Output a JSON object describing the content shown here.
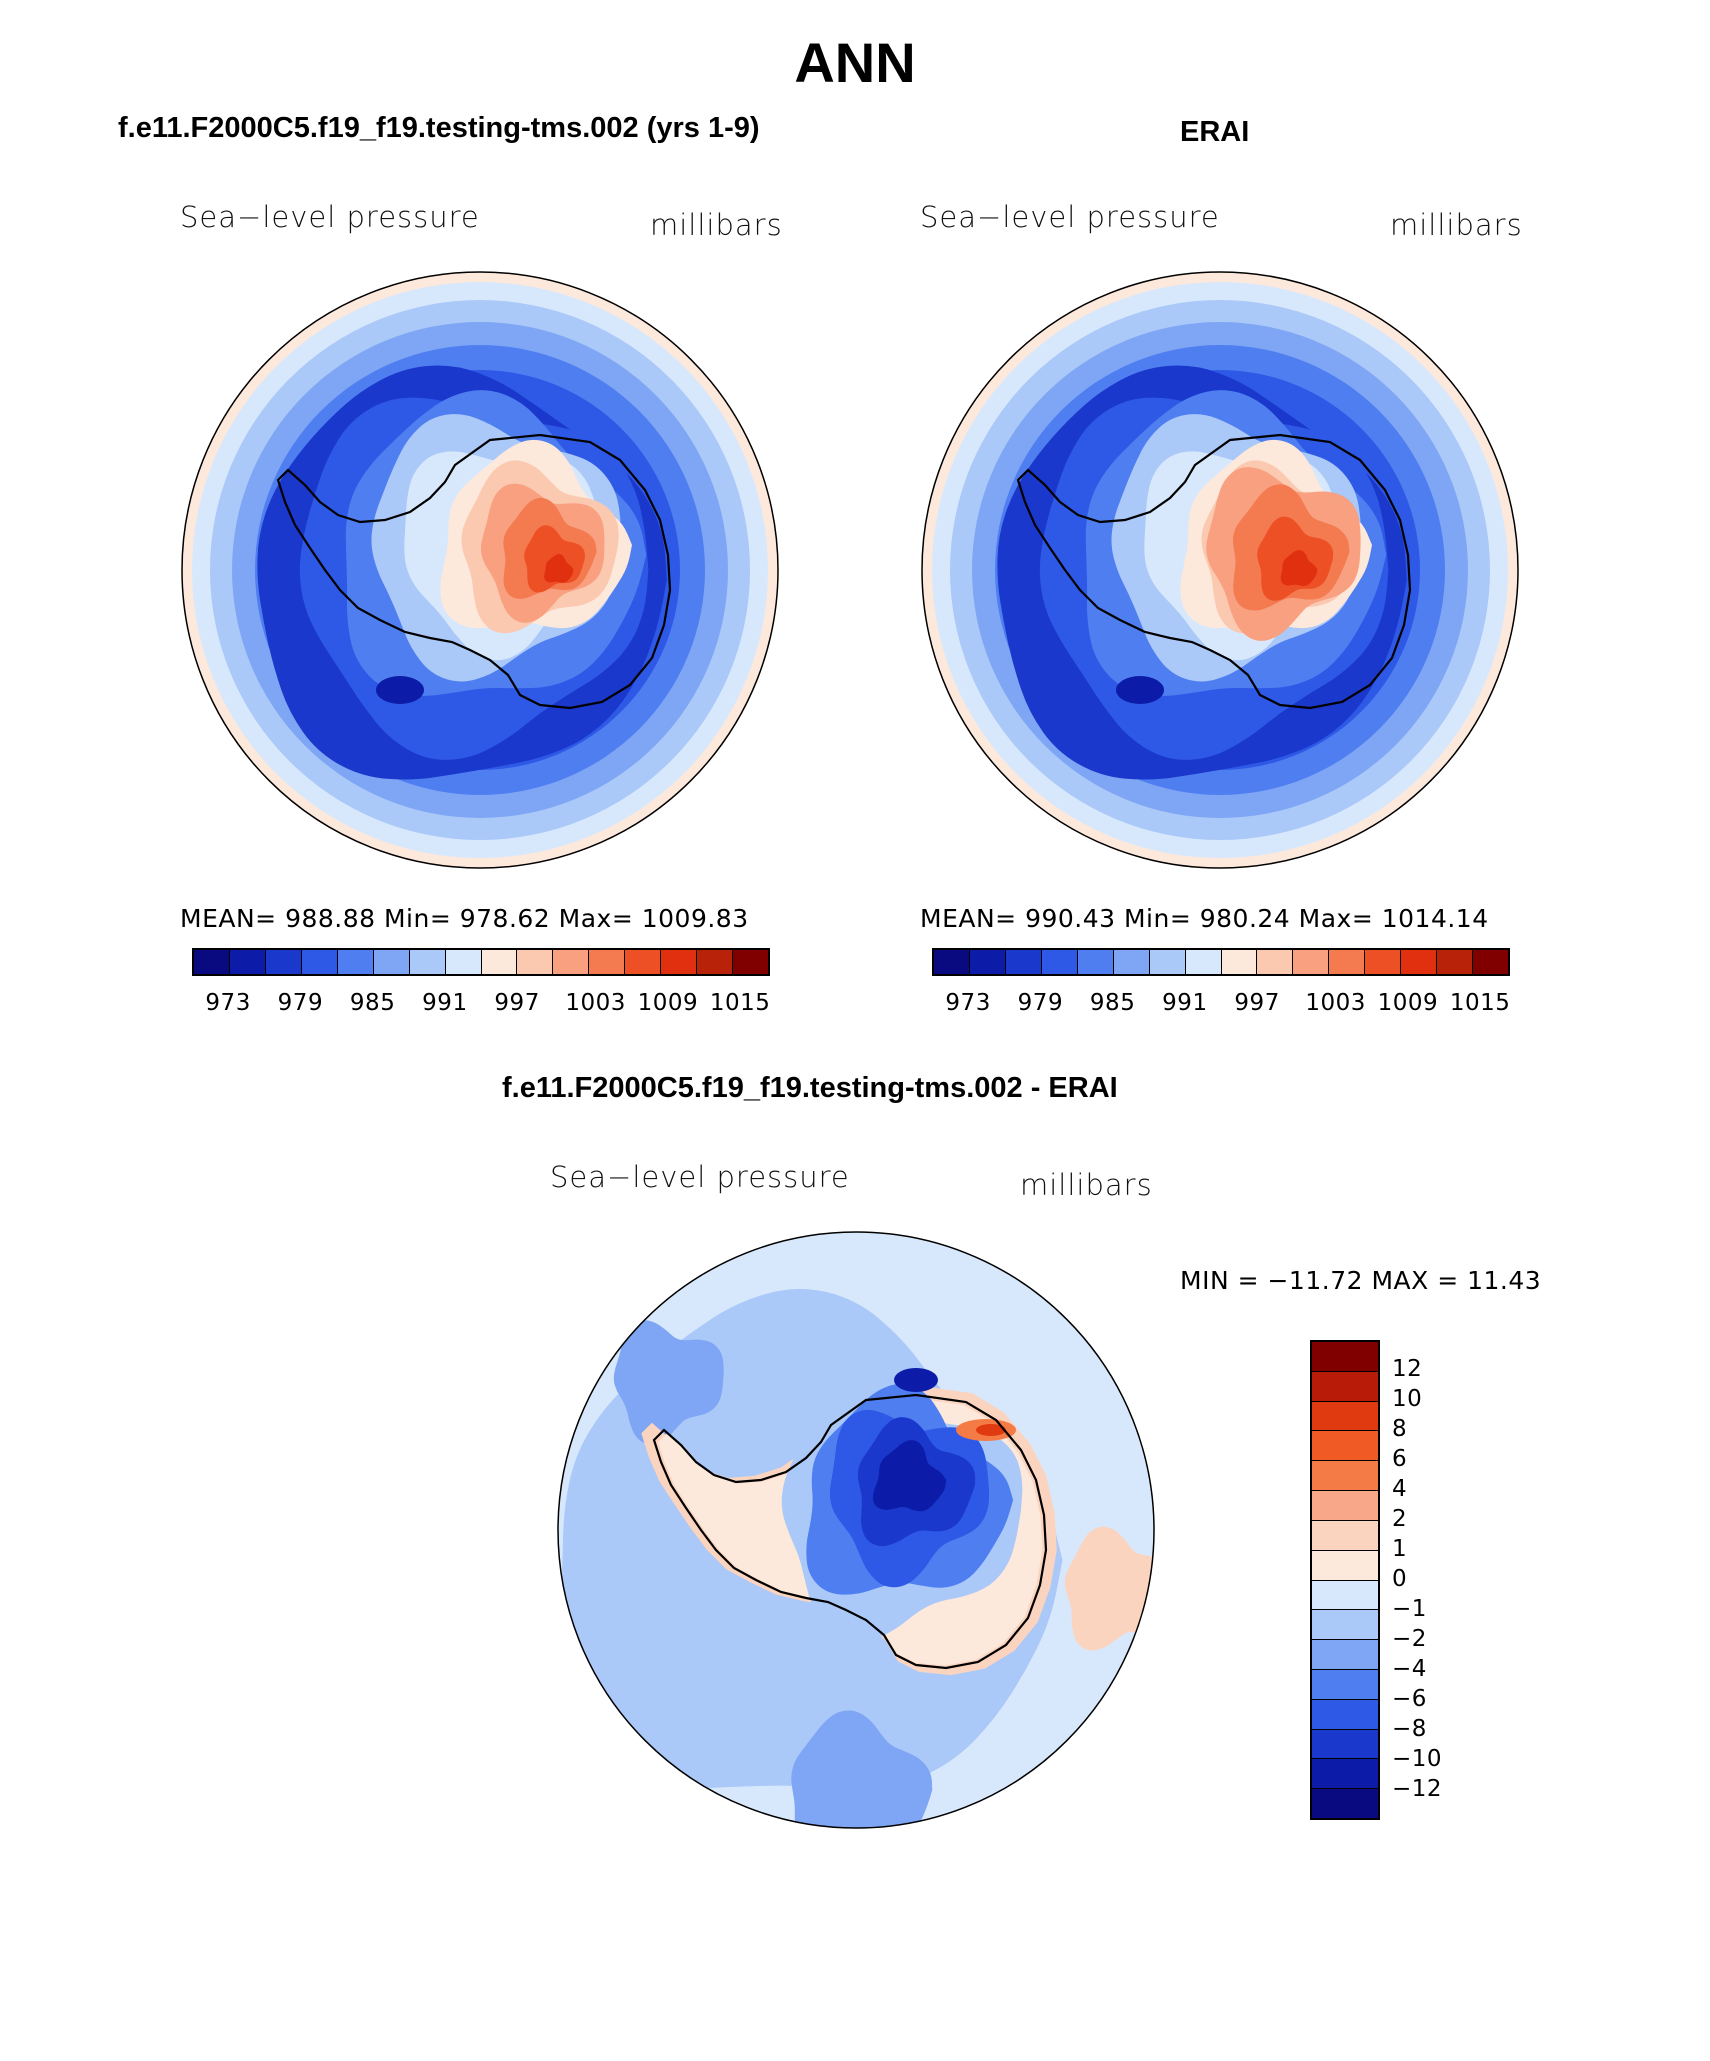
{
  "main_title": "ANN",
  "panels": [
    {
      "title": "f.e11.F2000C5.f19_f19.testing-tms.002 (yrs 1-9)",
      "variable": "Sea−level pressure",
      "units": "millibars",
      "stats": "MEAN=  988.88   Min=  978.62   Max=  1009.83",
      "colorbar_labels": [
        "973",
        "979",
        "985",
        "991",
        "997",
        "1003",
        "1009",
        "1015"
      ]
    },
    {
      "title": "ERAI",
      "variable": "Sea−level pressure",
      "units": "millibars",
      "stats": "MEAN=  990.43   Min=  980.24   Max=  1014.14",
      "colorbar_labels": [
        "973",
        "979",
        "985",
        "991",
        "997",
        "1003",
        "1009",
        "1015"
      ]
    }
  ],
  "diff_panel": {
    "title": "f.e11.F2000C5.f19_f19.testing-tms.002 - ERAI",
    "variable": "Sea−level pressure",
    "units": "millibars",
    "minmax": "MIN  =  −11.72  MAX  =    11.43",
    "colorbar_labels": [
      "12",
      "10",
      "8",
      "6",
      "4",
      "2",
      "1",
      "0",
      "−1",
      "−2",
      "−4",
      "−6",
      "−8",
      "−10",
      "−12"
    ]
  },
  "colors": {
    "abs_scale": [
      "#0a0a80",
      "#0c1ca8",
      "#1a38cc",
      "#2e58e6",
      "#4f7ef0",
      "#7ea6f4",
      "#aac8f8",
      "#d8e8fc",
      "#fde8dc",
      "#fbc8b0",
      "#f8a080",
      "#f47a50",
      "#ee5026",
      "#e03010",
      "#b82208",
      "#800000"
    ],
    "diff_scale": [
      "#800000",
      "#b81c08",
      "#e03a10",
      "#f05a24",
      "#f47a46",
      "#f8a888",
      "#fbd4c0",
      "#fde8dc",
      "#d8e8fc",
      "#aac8f8",
      "#7ea6f4",
      "#4f7ef0",
      "#2e58e6",
      "#1a38cc",
      "#0c1ca8",
      "#0a0a80"
    ],
    "coast": "#000000"
  }
}
